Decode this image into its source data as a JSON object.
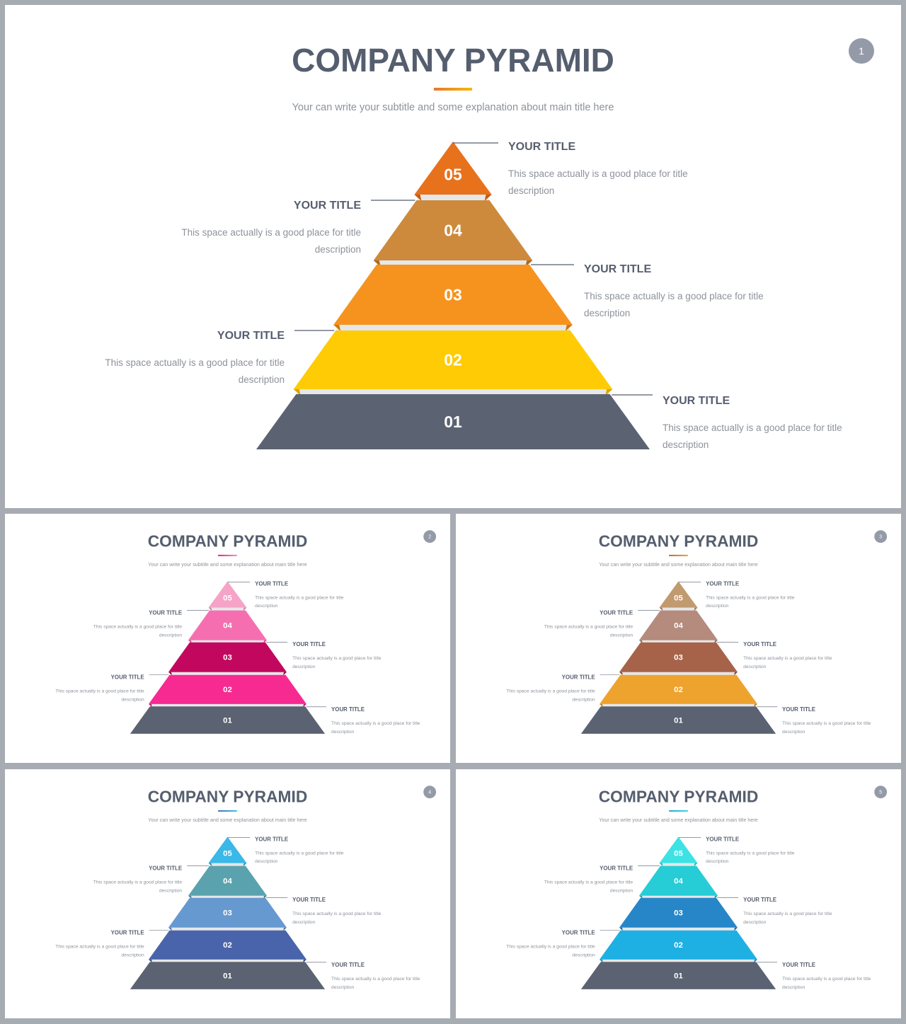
{
  "slides": [
    {
      "title": "COMPANY PYRAMID",
      "subtitle": "Your can write your subtitle and some explanation about main title here",
      "page_number": "1",
      "accent": [
        "#e8762b",
        "#f5b90c"
      ],
      "tiers": [
        {
          "number": "05",
          "color": "#e8711c",
          "fold": "#c25c10",
          "title": "YOUR TITLE",
          "desc1": "This space actually is a good place for title",
          "desc2": "description",
          "side": "right"
        },
        {
          "number": "04",
          "color": "#cd8a3c",
          "fold": "#a86c26",
          "title": "YOUR TITLE",
          "desc1": "This space actually is a good place for title",
          "desc2": "description",
          "side": "left"
        },
        {
          "number": "03",
          "color": "#f6931e",
          "fold": "#cf7612",
          "title": "YOUR TITLE",
          "desc1": "This space actually is a good place for title",
          "desc2": "description",
          "side": "right"
        },
        {
          "number": "02",
          "color": "#ffcb05",
          "fold": "#d6a700",
          "title": "YOUR TITLE",
          "desc1": "This space actually is a good place for title",
          "desc2": "description",
          "side": "left"
        },
        {
          "number": "01",
          "color": "#5b6271",
          "fold": "#454b57",
          "title": "YOUR TITLE",
          "desc1": "This space actually is a good place for title",
          "desc2": "description",
          "side": "right"
        }
      ]
    },
    {
      "title": "COMPANY PYRAMID",
      "subtitle": "Your can write your subtitle and some explanation about main title here",
      "page_number": "2",
      "accent": [
        "#e21e7b",
        "#f28ab6"
      ],
      "tiers": [
        {
          "number": "05",
          "color": "#f6a3c8",
          "fold": "#d67ca5",
          "title": "YOUR TITLE",
          "desc1": "This space actually is a good place for title",
          "desc2": "description",
          "side": "right"
        },
        {
          "number": "04",
          "color": "#f56fb0",
          "fold": "#d04f8e",
          "title": "YOUR TITLE",
          "desc1": "This space actually is a good place for title",
          "desc2": "description",
          "side": "left"
        },
        {
          "number": "03",
          "color": "#c2085e",
          "fold": "#93053f",
          "title": "YOUR TITLE",
          "desc1": "This space actually is a good place for title",
          "desc2": "description",
          "side": "right"
        },
        {
          "number": "02",
          "color": "#f72a91",
          "fold": "#c8156e",
          "title": "YOUR TITLE",
          "desc1": "This space actually is a good place for title",
          "desc2": "description",
          "side": "left"
        },
        {
          "number": "01",
          "color": "#5b6271",
          "fold": "#454b57",
          "title": "YOUR TITLE",
          "desc1": "This space actually is a good place for title",
          "desc2": "description",
          "side": "right"
        }
      ]
    },
    {
      "title": "COMPANY PYRAMID",
      "subtitle": "Your can write your subtitle and some explanation about main title here",
      "page_number": "3",
      "accent": [
        "#b06b3c",
        "#eba13a"
      ],
      "tiers": [
        {
          "number": "05",
          "color": "#c29a70",
          "fold": "#9c7854",
          "title": "YOUR TITLE",
          "desc1": "This space actually is a good place for title",
          "desc2": "description",
          "side": "right"
        },
        {
          "number": "04",
          "color": "#b48b7c",
          "fold": "#8f6a5d",
          "title": "YOUR TITLE",
          "desc1": "This space actually is a good place for title",
          "desc2": "description",
          "side": "left"
        },
        {
          "number": "03",
          "color": "#a6634a",
          "fold": "#7f4934",
          "title": "YOUR TITLE",
          "desc1": "This space actually is a good place for title",
          "desc2": "description",
          "side": "right"
        },
        {
          "number": "02",
          "color": "#eea32e",
          "fold": "#c58218",
          "title": "YOUR TITLE",
          "desc1": "This space actually is a good place for title",
          "desc2": "description",
          "side": "left"
        },
        {
          "number": "01",
          "color": "#5b6271",
          "fold": "#454b57",
          "title": "YOUR TITLE",
          "desc1": "This space actually is a good place for title",
          "desc2": "description",
          "side": "right"
        }
      ]
    },
    {
      "title": "COMPANY PYRAMID",
      "subtitle": "Your can write your subtitle and some explanation about main title here",
      "page_number": "4",
      "accent": [
        "#3a6fb0",
        "#39c0ea"
      ],
      "tiers": [
        {
          "number": "05",
          "color": "#3ab8e8",
          "fold": "#2394c0",
          "title": "YOUR TITLE",
          "desc1": "This space actually is a good place for title",
          "desc2": "description",
          "side": "right"
        },
        {
          "number": "04",
          "color": "#5aa3ae",
          "fold": "#43808a",
          "title": "YOUR TITLE",
          "desc1": "This space actually is a good place for title",
          "desc2": "description",
          "side": "left"
        },
        {
          "number": "03",
          "color": "#6699cf",
          "fold": "#4a7ab0",
          "title": "YOUR TITLE",
          "desc1": "This space actually is a good place for title",
          "desc2": "description",
          "side": "right"
        },
        {
          "number": "02",
          "color": "#4964aa",
          "fold": "#324a87",
          "title": "YOUR TITLE",
          "desc1": "This space actually is a good place for title",
          "desc2": "description",
          "side": "left"
        },
        {
          "number": "01",
          "color": "#5b6271",
          "fold": "#454b57",
          "title": "YOUR TITLE",
          "desc1": "This space actually is a good place for title",
          "desc2": "description",
          "side": "right"
        }
      ]
    },
    {
      "title": "COMPANY PYRAMID",
      "subtitle": "Your can write your subtitle and some explanation about main title here",
      "page_number": "5",
      "accent": [
        "#1ba3dc",
        "#35d6e0"
      ],
      "tiers": [
        {
          "number": "05",
          "color": "#3de2e4",
          "fold": "#22b8bb",
          "title": "YOUR TITLE",
          "desc1": "This space actually is a good place for title",
          "desc2": "description",
          "side": "right"
        },
        {
          "number": "04",
          "color": "#26cdd6",
          "fold": "#15a3ab",
          "title": "YOUR TITLE",
          "desc1": "This space actually is a good place for title",
          "desc2": "description",
          "side": "left"
        },
        {
          "number": "03",
          "color": "#2786c8",
          "fold": "#1b65a0",
          "title": "YOUR TITLE",
          "desc1": "This space actually is a good place for title",
          "desc2": "description",
          "side": "right"
        },
        {
          "number": "02",
          "color": "#1fb0e3",
          "fold": "#138bb8",
          "title": "YOUR TITLE",
          "desc1": "This space actually is a good place for title",
          "desc2": "description",
          "side": "left"
        },
        {
          "number": "01",
          "color": "#5b6271",
          "fold": "#454b57",
          "title": "YOUR TITLE",
          "desc1": "This space actually is a good place for title",
          "desc2": "description",
          "side": "right"
        }
      ]
    }
  ]
}
